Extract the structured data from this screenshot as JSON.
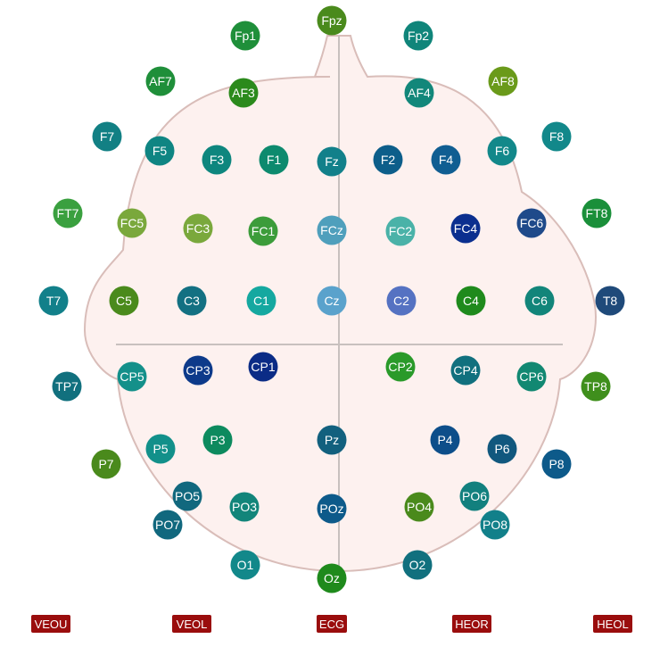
{
  "electrodes": [
    {
      "label": "Fpz",
      "color": "#4a8a1c"
    },
    {
      "label": "Fp1",
      "color": "#1f8f3a"
    },
    {
      "label": "Fp2",
      "color": "#10857a"
    },
    {
      "label": "AF7",
      "color": "#1f8f3a"
    },
    {
      "label": "AF3",
      "color": "#2b8a1c"
    },
    {
      "label": "AF4",
      "color": "#12877a"
    },
    {
      "label": "AF8",
      "color": "#6a9a1a"
    },
    {
      "label": "F7",
      "color": "#128084"
    },
    {
      "label": "F5",
      "color": "#0f8583"
    },
    {
      "label": "F3",
      "color": "#0e867e"
    },
    {
      "label": "F1",
      "color": "#0d8a6e"
    },
    {
      "label": "Fz",
      "color": "#12808a"
    },
    {
      "label": "F2",
      "color": "#0d5e8a"
    },
    {
      "label": "F4",
      "color": "#105e92"
    },
    {
      "label": "F6",
      "color": "#12888a"
    },
    {
      "label": "F8",
      "color": "#12888a"
    },
    {
      "label": "FT7",
      "color": "#3aa03f"
    },
    {
      "label": "FC5",
      "color": "#7aa83c"
    },
    {
      "label": "FC3",
      "color": "#7aa83c"
    },
    {
      "label": "FC1",
      "color": "#3c9c3a"
    },
    {
      "label": "FCz",
      "color": "#4f9fbc"
    },
    {
      "label": "FC2",
      "color": "#4ab2a8"
    },
    {
      "label": "FC4",
      "color": "#0b2f8f"
    },
    {
      "label": "FC6",
      "color": "#1f4a8a"
    },
    {
      "label": "FT8",
      "color": "#1a8f3a"
    },
    {
      "label": "T7",
      "color": "#12808a"
    },
    {
      "label": "C5",
      "color": "#4a8a1c"
    },
    {
      "label": "C3",
      "color": "#137082"
    },
    {
      "label": "C1",
      "color": "#15a8a0"
    },
    {
      "label": "Cz",
      "color": "#5aa2cc"
    },
    {
      "label": "C2",
      "color": "#5572c2"
    },
    {
      "label": "C4",
      "color": "#1f8a1c"
    },
    {
      "label": "C6",
      "color": "#12857a"
    },
    {
      "label": "T8",
      "color": "#1f4a7a"
    },
    {
      "label": "TP7",
      "color": "#11707e"
    },
    {
      "label": "CP5",
      "color": "#14908a"
    },
    {
      "label": "CP3",
      "color": "#0d3a8a"
    },
    {
      "label": "CP1",
      "color": "#0b2c86"
    },
    {
      "label": "CP2",
      "color": "#2a9a2a"
    },
    {
      "label": "CP4",
      "color": "#11707e"
    },
    {
      "label": "CP6",
      "color": "#128872"
    },
    {
      "label": "TP8",
      "color": "#3f8f1c"
    },
    {
      "label": "P7",
      "color": "#4a8a1c"
    },
    {
      "label": "P5",
      "color": "#12908a"
    },
    {
      "label": "P3",
      "color": "#0d8a5e"
    },
    {
      "label": "Pz",
      "color": "#12607e"
    },
    {
      "label": "P4",
      "color": "#0d4e8a"
    },
    {
      "label": "P6",
      "color": "#11587e"
    },
    {
      "label": "P8",
      "color": "#0d5a8a"
    },
    {
      "label": "PO5",
      "color": "#11687e"
    },
    {
      "label": "PO7",
      "color": "#11687e"
    },
    {
      "label": "PO3",
      "color": "#12857a"
    },
    {
      "label": "POz",
      "color": "#0d5a8a"
    },
    {
      "label": "PO4",
      "color": "#4a8a1c"
    },
    {
      "label": "PO6",
      "color": "#12807e"
    },
    {
      "label": "PO8",
      "color": "#12808a"
    },
    {
      "label": "O1",
      "color": "#12888a"
    },
    {
      "label": "O2",
      "color": "#11707e"
    },
    {
      "label": "Oz",
      "color": "#1f8a1c"
    }
  ],
  "aux_channels": [
    {
      "label": "VEOU",
      "color": "#9a0d0d"
    },
    {
      "label": "VEOL",
      "color": "#9a0d0d"
    },
    {
      "label": "ECG",
      "color": "#9a0d0d"
    },
    {
      "label": "HEOR",
      "color": "#9a0d0d"
    },
    {
      "label": "HEOL",
      "color": "#9a0d0d"
    }
  ],
  "head": {
    "fill": "#fdf1ef",
    "outline": "#d9bdb9",
    "axis_color": "#c8c0be"
  }
}
